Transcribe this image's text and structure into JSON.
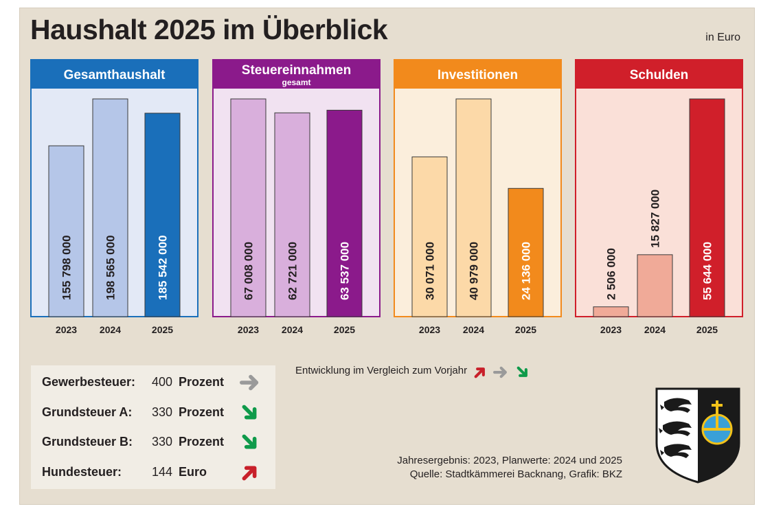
{
  "title": "Haushalt 2025 im Überblick",
  "unit_note": "in Euro",
  "chart_data": [
    {
      "type": "bar",
      "title": "Gesamthaushalt",
      "subtitle": "",
      "categories": [
        "2023",
        "2024",
        "2025"
      ],
      "values": [
        155798000,
        198565000,
        185542000
      ],
      "labels": [
        "155 798 000",
        "198 565 000",
        "185 542 000"
      ],
      "colors": {
        "header": "#1a6fba",
        "plot_bg": "#e3e9f6",
        "bar_light": "#b5c6e8",
        "bar_highlight": "#1a6fba",
        "label_on_highlight": "#ffffff"
      }
    },
    {
      "type": "bar",
      "title": "Steuereinnahmen",
      "subtitle": "gesamt",
      "categories": [
        "2023",
        "2024",
        "2025"
      ],
      "values": [
        67008000,
        62721000,
        63537000
      ],
      "labels": [
        "67 008 000",
        "62 721 000",
        "63 537 000"
      ],
      "colors": {
        "header": "#8b1a8b",
        "plot_bg": "#f1e2f1",
        "bar_light": "#d9afdc",
        "bar_highlight": "#8b1a8b",
        "label_on_highlight": "#ffffff"
      }
    },
    {
      "type": "bar",
      "title": "Investitionen",
      "subtitle": "",
      "categories": [
        "2023",
        "2024",
        "2025"
      ],
      "values": [
        30071000,
        40979000,
        24136000
      ],
      "labels": [
        "30 071 000",
        "40 979 000",
        "24 136 000"
      ],
      "colors": {
        "header": "#f28a1c",
        "plot_bg": "#fbeedc",
        "bar_light": "#fcd9a8",
        "bar_highlight": "#f28a1c",
        "label_on_highlight": "#ffffff"
      }
    },
    {
      "type": "bar",
      "title": "Schulden",
      "subtitle": "",
      "categories": [
        "2023",
        "2024",
        "2025"
      ],
      "values": [
        2506000,
        15827000,
        55644000
      ],
      "labels": [
        "2 506 000",
        "15 827 000",
        "55 644 000"
      ],
      "colors": {
        "header": "#d01f2a",
        "plot_bg": "#fae0d8",
        "bar_light": "#f0aa98",
        "bar_highlight": "#d01f2a",
        "label_on_highlight": "#ffffff"
      }
    }
  ],
  "taxes": [
    {
      "name": "Gewerbesteuer:",
      "value": "400",
      "unit": "Prozent",
      "trend": "same"
    },
    {
      "name": "Grundsteuer A:",
      "value": "330",
      "unit": "Prozent",
      "trend": "down"
    },
    {
      "name": "Grundsteuer B:",
      "value": "330",
      "unit": "Prozent",
      "trend": "down"
    },
    {
      "name": "Hundesteuer:",
      "value": "144",
      "unit": "Euro",
      "trend": "up"
    }
  ],
  "legend": {
    "text": "Entwicklung im Vergleich zum Vorjahr",
    "trends": [
      "up",
      "same",
      "down"
    ]
  },
  "trend_colors": {
    "up": "#c8202a",
    "same": "#9a9a9a",
    "down": "#0f9a4a"
  },
  "footnote": {
    "line1": "Jahresergebnis: 2023, Planwerte: 2024 und 2025",
    "line2": "Quelle: Stadtkämmerei Backnang, Grafik: BKZ"
  },
  "coat_of_arms": "backnang-coat-of-arms"
}
